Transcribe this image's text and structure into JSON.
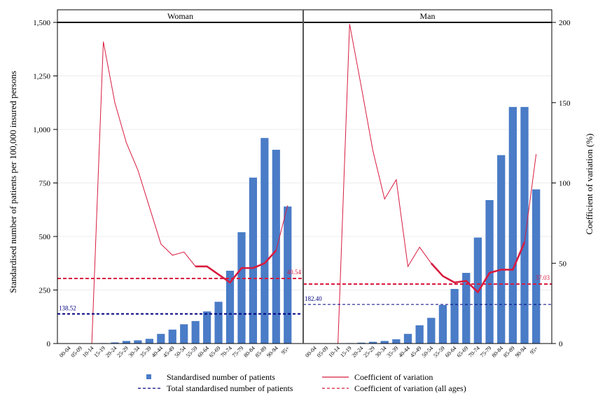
{
  "chart_data": {
    "type": "bar",
    "categories": [
      "00-04",
      "05-09",
      "10-14",
      "15-19",
      "20-24",
      "25-29",
      "30-34",
      "35-39",
      "40-44",
      "45-49",
      "50-54",
      "55-59",
      "60-64",
      "65-69",
      "70-74",
      "75-79",
      "80-84",
      "85-89",
      "90-94",
      "95+"
    ],
    "ylabel": "Standardised number of patients per 100,000 insured persons",
    "y2label": "Coefficient of variation (%)",
    "ylim": [
      0,
      1500
    ],
    "y2lim": [
      0,
      200
    ],
    "yticks": [
      0,
      250,
      500,
      750,
      1000,
      1250,
      1500
    ],
    "ytick_labels": [
      "0",
      "250",
      "500",
      "750",
      "1,000",
      "1,250",
      "1,500"
    ],
    "y2ticks": [
      0,
      50,
      100,
      150,
      200
    ],
    "grid": true,
    "legend_position": "bottom",
    "colors": {
      "bar": "#4a7cc7",
      "cv_line": "#d81b3f",
      "total_line": "#000080",
      "cv_all_line": "#d81b3f"
    },
    "legend": {
      "bars": "Standardised number of patients",
      "total": "Total standardised number of patients",
      "cv": "Coefficient of variation",
      "cv_all": "Coefficient of variation (all ages)"
    },
    "panels": [
      {
        "title": "Woman",
        "bars": [
          0,
          0,
          0,
          2,
          5,
          12,
          15,
          22,
          45,
          65,
          90,
          105,
          150,
          195,
          340,
          520,
          775,
          960,
          905,
          640
        ],
        "cv": [
          0,
          0,
          0,
          188,
          150,
          125,
          108,
          85,
          62,
          55,
          57,
          48,
          48,
          43,
          38,
          47,
          47,
          50,
          58,
          86
        ],
        "cv_thick_from": 11,
        "total": 138.52,
        "total_label": "138.52",
        "cv_all": 40.54,
        "cv_all_label": "40.54"
      },
      {
        "title": "Man",
        "bars": [
          0,
          0,
          0,
          2,
          4,
          8,
          12,
          20,
          45,
          85,
          120,
          180,
          255,
          330,
          495,
          670,
          880,
          1105,
          1105,
          720
        ],
        "cv": [
          0,
          0,
          0,
          199,
          160,
          120,
          90,
          102,
          48,
          60,
          50,
          42,
          38,
          39,
          32,
          44,
          46,
          46,
          63,
          118
        ],
        "cv_thick_from": 10,
        "total": 182.4,
        "total_label": "182.40",
        "cv_all": 37.03,
        "cv_all_label": "37.03"
      }
    ]
  }
}
